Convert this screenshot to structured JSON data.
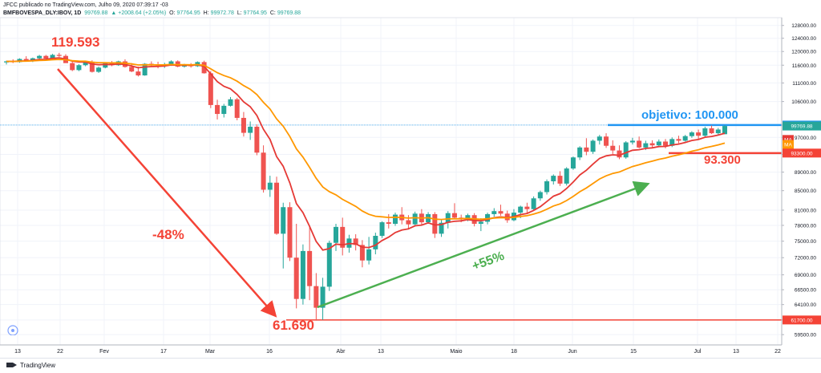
{
  "header": {
    "line1": "JFCC publicado no TradingView.com, Julho 09, 2020 07:39:17 -03",
    "symbol": "BMFBOVESPA_DLY:IBOV, 1D",
    "close_value": "99769.88",
    "change": "▲ +2008.64 (+2.05%)",
    "o_label": "O:",
    "o_value": "97764.95",
    "h_label": "H:",
    "h_value": "99972.78",
    "l_label": "L:",
    "l_value": "97764.95",
    "c_label": "C:",
    "c_value": "99769.88"
  },
  "footer": {
    "brand": "TradingView"
  },
  "annotations": {
    "high": "119.593",
    "low": "61.690",
    "drop": "-48%",
    "rise": "+55%",
    "target": "objetivo: 100.000",
    "support": "93.300"
  },
  "price_tags": {
    "target_line": "100000.00",
    "last": "99769.88",
    "ma_a": "MA",
    "ma_b": "MA",
    "support_line": "93300.00",
    "low_line": "61700.00"
  },
  "colors": {
    "up": "#26a69a",
    "down": "#ef5350",
    "ma_fast": "#e53935",
    "ma_slow": "#ff9800",
    "arrow_down": "#f44336",
    "arrow_up": "#4caf50",
    "target": "#2196f3",
    "support": "#f44336"
  },
  "chart_data": {
    "type": "candlestick",
    "title": "BMFBOVESPA_DLY:IBOV, 1D",
    "x_ticks": [
      "13",
      "22",
      "Fev",
      "17",
      "Mar",
      "16",
      "Abr",
      "13",
      "Maio",
      "18",
      "Jun",
      "15",
      "Jul",
      "13",
      "22"
    ],
    "y_ticks": [
      "128000.00",
      "124000.00",
      "120000.00",
      "116000.00",
      "111000.00",
      "106000.00",
      "100000.00",
      "97000.00",
      "93000.00",
      "89000.00",
      "85000.00",
      "81000.00",
      "78000.00",
      "75000.00",
      "72000.00",
      "69000.00",
      "66500.00",
      "64100.00",
      "61700.00",
      "59500.00"
    ],
    "ylim": [
      58000,
      130500
    ],
    "y_scale": "log",
    "candles": [
      [
        116800,
        117300,
        116200,
        117100
      ],
      [
        117100,
        117700,
        116600,
        116900
      ],
      [
        116900,
        118000,
        116700,
        117800
      ],
      [
        117800,
        118600,
        117300,
        117300
      ],
      [
        117300,
        118200,
        116900,
        118000
      ],
      [
        118000,
        119000,
        117700,
        118700
      ],
      [
        118700,
        119000,
        117800,
        117900
      ],
      [
        117900,
        119300,
        117700,
        119000
      ],
      [
        119000,
        119600,
        118400,
        118700
      ],
      [
        118700,
        119200,
        116700,
        116600
      ],
      [
        116600,
        117000,
        114300,
        114600
      ],
      [
        114600,
        116300,
        114300,
        116000
      ],
      [
        116000,
        116900,
        115700,
        116800
      ],
      [
        116800,
        117400,
        113900,
        114100
      ],
      [
        114100,
        115600,
        113800,
        115300
      ],
      [
        115300,
        116800,
        115100,
        116600
      ],
      [
        116600,
        117200,
        115700,
        116000
      ],
      [
        116000,
        117300,
        115800,
        117100
      ],
      [
        117100,
        117700,
        115300,
        115500
      ],
      [
        115500,
        116600,
        114000,
        114200
      ],
      [
        114200,
        115600,
        112800,
        113100
      ],
      [
        113100,
        116600,
        113000,
        116400
      ],
      [
        116400,
        117100,
        115700,
        116100
      ],
      [
        116100,
        117000,
        115100,
        115900
      ],
      [
        115900,
        116700,
        115200,
        116300
      ],
      [
        116300,
        117400,
        115800,
        117100
      ],
      [
        117100,
        117400,
        115400,
        115600
      ],
      [
        115600,
        116400,
        115300,
        116200
      ],
      [
        116200,
        116600,
        115300,
        115700
      ],
      [
        115700,
        117100,
        115500,
        116900
      ],
      [
        116900,
        117300,
        113600,
        113700
      ],
      [
        113700,
        114300,
        104300,
        105100
      ],
      [
        105100,
        106500,
        101400,
        102800
      ],
      [
        102800,
        105400,
        101900,
        104900
      ],
      [
        104900,
        107200,
        104700,
        106600
      ],
      [
        106600,
        107000,
        101200,
        101800
      ],
      [
        101800,
        103300,
        97200,
        98100
      ],
      [
        98100,
        100900,
        96400,
        99600
      ],
      [
        99600,
        100200,
        92800,
        93400
      ],
      [
        93400,
        95100,
        84600,
        85200
      ],
      [
        85200,
        88200,
        83700,
        86700
      ],
      [
        86700,
        88000,
        76200,
        76400
      ],
      [
        76400,
        82500,
        70100,
        81600
      ],
      [
        81600,
        82600,
        71400,
        72000
      ],
      [
        72000,
        78300,
        63500,
        65000
      ],
      [
        65000,
        74400,
        64100,
        73200
      ],
      [
        73200,
        77900,
        64800,
        67100
      ],
      [
        67100,
        69300,
        61600,
        63600
      ],
      [
        63600,
        68500,
        61700,
        67000
      ],
      [
        67000,
        75100,
        66300,
        74700
      ],
      [
        74700,
        78300,
        73200,
        77700
      ],
      [
        77700,
        79500,
        72400,
        73800
      ],
      [
        73800,
        76200,
        72900,
        75500
      ],
      [
        75500,
        76300,
        73300,
        74300
      ],
      [
        74300,
        75200,
        70300,
        71500
      ],
      [
        71500,
        75800,
        70800,
        73500
      ],
      [
        73500,
        76600,
        72600,
        76000
      ],
      [
        76000,
        78800,
        75600,
        78600
      ],
      [
        78600,
        80200,
        77400,
        78300
      ],
      [
        78300,
        80500,
        77900,
        80100
      ],
      [
        80100,
        81600,
        78200,
        79000
      ],
      [
        79000,
        80000,
        77200,
        78200
      ],
      [
        78200,
        80700,
        77800,
        80300
      ],
      [
        80300,
        81200,
        77900,
        78600
      ],
      [
        78600,
        80600,
        78300,
        80200
      ],
      [
        80200,
        80600,
        75600,
        76400
      ],
      [
        76400,
        79000,
        75800,
        78500
      ],
      [
        78500,
        80800,
        77400,
        80400
      ],
      [
        80400,
        82400,
        79200,
        79500
      ],
      [
        79500,
        80100,
        78600,
        79300
      ],
      [
        79300,
        80300,
        78800,
        80000
      ],
      [
        80000,
        80400,
        77800,
        78300
      ],
      [
        78300,
        79400,
        76900,
        78700
      ],
      [
        78700,
        80500,
        78200,
        80200
      ],
      [
        80200,
        81400,
        79700,
        80800
      ],
      [
        80800,
        82100,
        79900,
        80300
      ],
      [
        80300,
        80900,
        78500,
        79000
      ],
      [
        79000,
        81200,
        78800,
        80500
      ],
      [
        80500,
        81900,
        79400,
        81700
      ],
      [
        81700,
        82500,
        80300,
        81200
      ],
      [
        81200,
        83800,
        81000,
        83400
      ],
      [
        83400,
        85000,
        82900,
        84700
      ],
      [
        84700,
        87400,
        84200,
        87000
      ],
      [
        87000,
        88500,
        86300,
        88200
      ],
      [
        88200,
        89200,
        86000,
        86500
      ],
      [
        86500,
        90100,
        86100,
        89800
      ],
      [
        89800,
        92500,
        89500,
        92300
      ],
      [
        92300,
        94900,
        91700,
        94600
      ],
      [
        94600,
        96800,
        92800,
        93600
      ],
      [
        93600,
        96500,
        93100,
        96200
      ],
      [
        96200,
        97600,
        95300,
        97200
      ],
      [
        97200,
        98000,
        94500,
        95000
      ],
      [
        95000,
        96300,
        93100,
        93900
      ],
      [
        93900,
        95100,
        91900,
        92300
      ],
      [
        92300,
        96100,
        92000,
        95800
      ],
      [
        95800,
        96900,
        95300,
        96200
      ],
      [
        96200,
        97200,
        94400,
        94600
      ],
      [
        94600,
        96200,
        94000,
        95600
      ],
      [
        95600,
        96300,
        94500,
        95100
      ],
      [
        95100,
        96500,
        94900,
        96000
      ],
      [
        96000,
        96600,
        94400,
        95000
      ],
      [
        95000,
        97000,
        94700,
        96600
      ],
      [
        96600,
        97400,
        95600,
        96200
      ],
      [
        96200,
        97600,
        96000,
        97300
      ],
      [
        97300,
        98500,
        96900,
        98200
      ],
      [
        98200,
        98900,
        96600,
        97400
      ],
      [
        97400,
        99600,
        97100,
        99200
      ],
      [
        99200,
        99900,
        97800,
        98000
      ],
      [
        98000,
        99300,
        97600,
        98900
      ],
      [
        97765,
        99973,
        97765,
        99770
      ]
    ]
  }
}
